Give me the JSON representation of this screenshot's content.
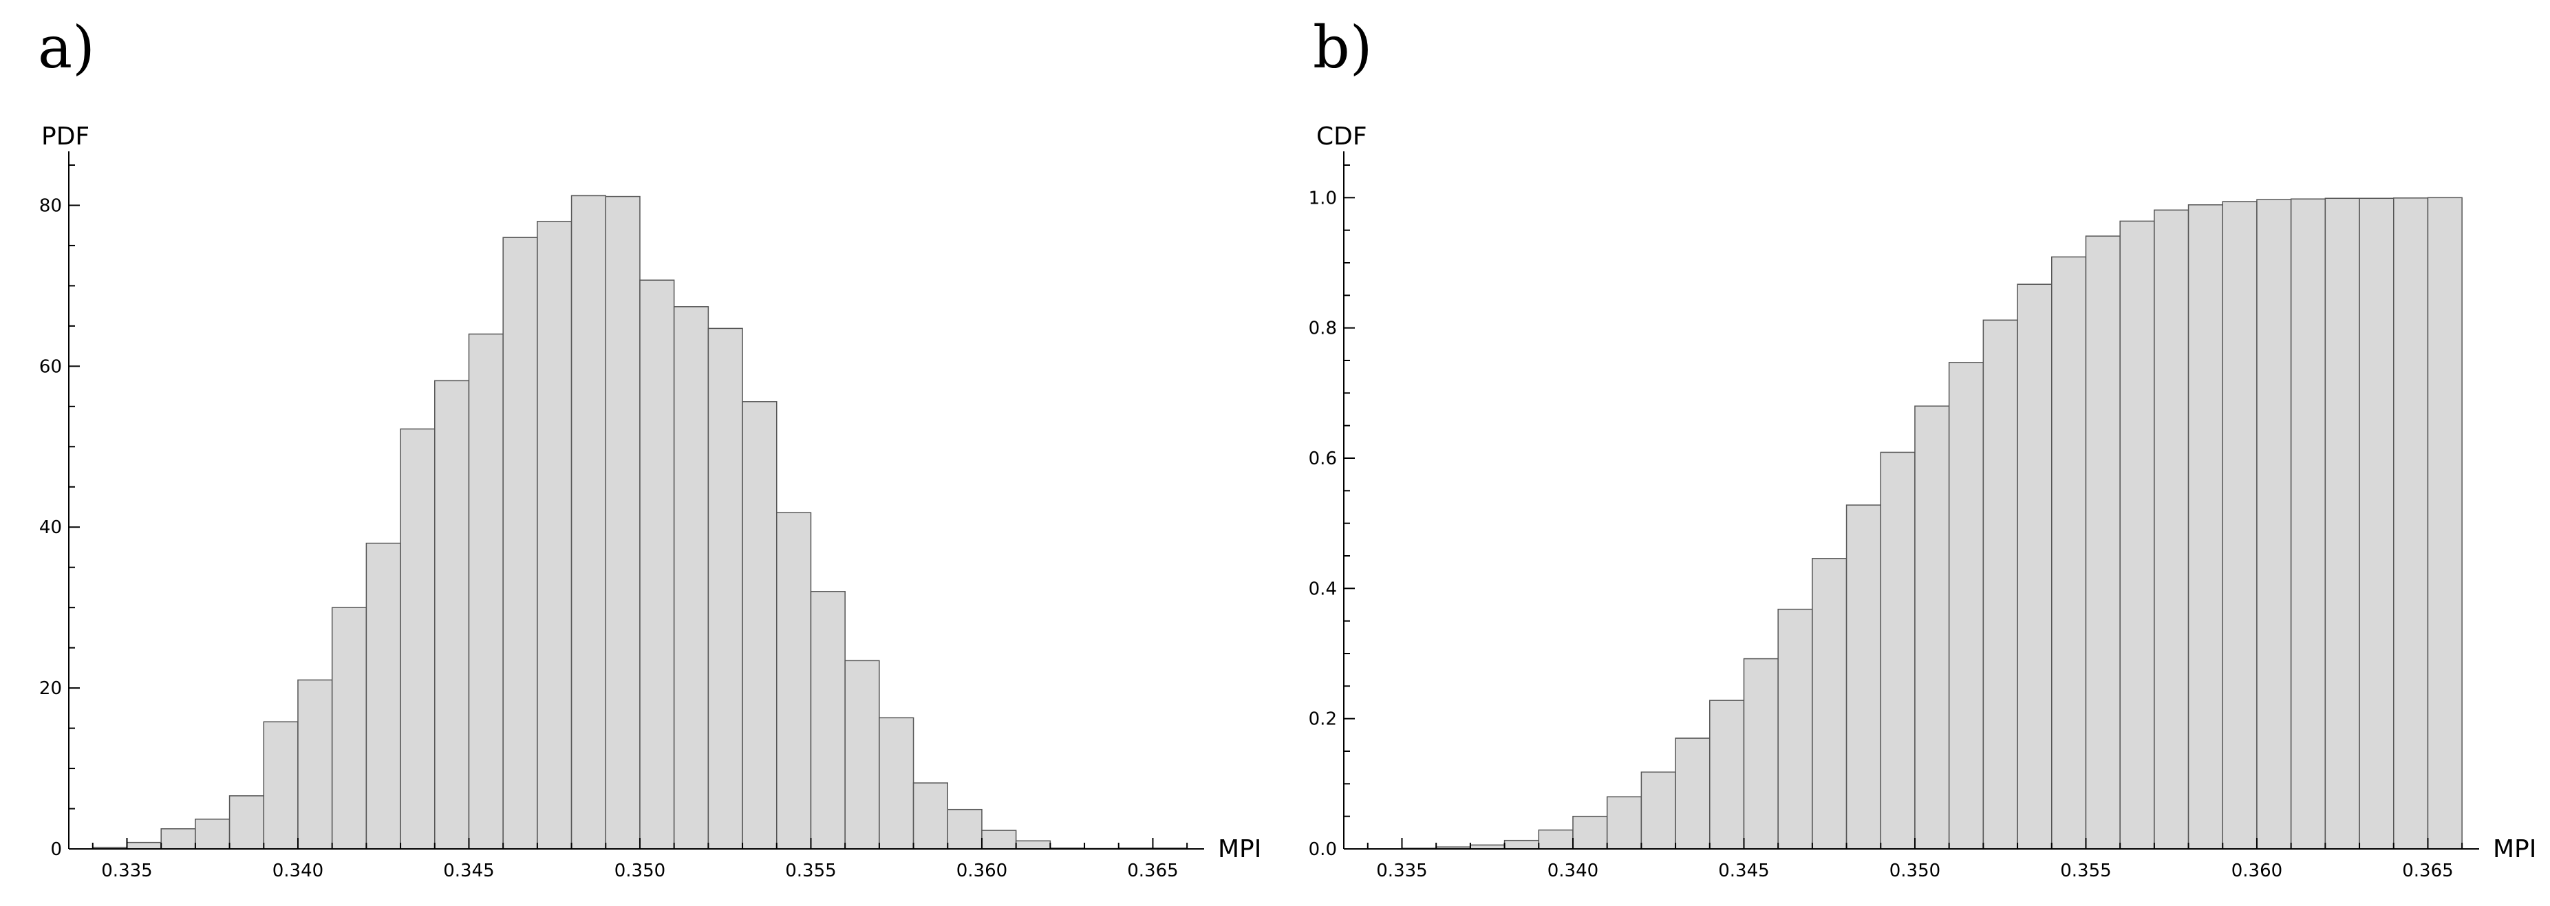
{
  "chart_data": [
    {
      "panel": "a)",
      "type": "bar",
      "ylabel": "PDF",
      "xlabel": "MPI",
      "xlim": [
        0.3333,
        0.3665
      ],
      "ylim": [
        0,
        85
      ],
      "x_ticks": [
        "0.335",
        "0.340",
        "0.345",
        "0.350",
        "0.355",
        "0.360",
        "0.365"
      ],
      "y_ticks": [
        "0",
        "20",
        "40",
        "60",
        "80"
      ],
      "bin_width": 0.001,
      "bin_starts": [
        0.334,
        0.335,
        0.336,
        0.337,
        0.338,
        0.339,
        0.34,
        0.341,
        0.342,
        0.343,
        0.344,
        0.345,
        0.346,
        0.347,
        0.348,
        0.349,
        0.35,
        0.351,
        0.352,
        0.353,
        0.354,
        0.355,
        0.356,
        0.357,
        0.358,
        0.359,
        0.36,
        0.361,
        0.362,
        0.363,
        0.364,
        0.365
      ],
      "values": [
        0.2,
        0.8,
        2.5,
        3.7,
        6.6,
        15.8,
        21.0,
        30.0,
        38.0,
        52.2,
        58.2,
        64.0,
        76.0,
        78.0,
        81.2,
        81.1,
        70.7,
        67.4,
        64.7,
        55.6,
        41.8,
        32.0,
        23.4,
        16.3,
        8.2,
        4.9,
        2.3,
        1.0,
        0.1,
        0.05,
        0.1,
        0.1
      ]
    },
    {
      "panel": "b)",
      "type": "bar",
      "ylabel": "CDF",
      "xlabel": "MPI",
      "xlim": [
        0.3333,
        0.3665
      ],
      "ylim": [
        0,
        1.05
      ],
      "x_ticks": [
        "0.335",
        "0.340",
        "0.345",
        "0.350",
        "0.355",
        "0.360",
        "0.365"
      ],
      "y_ticks": [
        "0.0",
        "0.2",
        "0.4",
        "0.6",
        "0.8",
        "1.0"
      ],
      "bin_width": 0.001,
      "bin_starts": [
        0.334,
        0.335,
        0.336,
        0.337,
        0.338,
        0.339,
        0.34,
        0.341,
        0.342,
        0.343,
        0.344,
        0.345,
        0.346,
        0.347,
        0.348,
        0.349,
        0.35,
        0.351,
        0.352,
        0.353,
        0.354,
        0.355,
        0.356,
        0.357,
        0.358,
        0.359,
        0.36,
        0.361,
        0.362,
        0.363,
        0.364,
        0.365
      ],
      "values": [
        0.0,
        0.001,
        0.003,
        0.006,
        0.013,
        0.029,
        0.05,
        0.08,
        0.118,
        0.17,
        0.228,
        0.292,
        0.368,
        0.446,
        0.528,
        0.609,
        0.68,
        0.747,
        0.812,
        0.867,
        0.909,
        0.941,
        0.964,
        0.981,
        0.989,
        0.994,
        0.997,
        0.998,
        0.999,
        0.999,
        0.9995,
        1.0
      ]
    }
  ]
}
